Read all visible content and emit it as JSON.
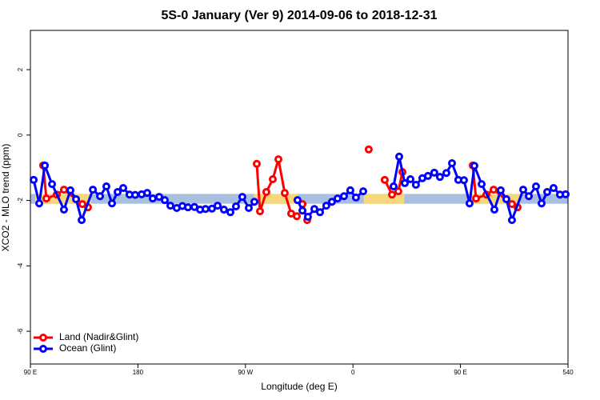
{
  "chart_data": {
    "type": "line",
    "title": "5S-0 January (Ver 9)   2014-09-06 to 2018-12-31",
    "x_label": "Longitude (deg E)",
    "y_label": "XCO2 - MLO trend (ppm)",
    "xlim": [
      90,
      540
    ],
    "xticks": [
      {
        "value": 90,
        "label": "90 E"
      },
      180,
      {
        "value": 270,
        "label": "90 W"
      },
      {
        "value": 360,
        "label": "0"
      },
      {
        "value": 450,
        "label": "90 E"
      },
      540
    ],
    "ylim": [
      -7,
      3.2
    ],
    "yticks": [
      -6,
      -4,
      -2,
      0,
      2
    ],
    "legend": "bottom-left",
    "band": {
      "range": [
        -2.1,
        -1.8
      ],
      "color": "#a8bfdf",
      "land_color": "#f6d77c",
      "land_spans": [
        [
          94,
          141
        ],
        [
          277,
          314
        ],
        [
          369,
          403
        ],
        [
          460,
          500
        ]
      ]
    },
    "series": [
      {
        "name": "Land (Nadir&Glint)",
        "color": "#ff0000",
        "x": [
          100.7,
          103.4,
          112.1,
          118.1,
          133.5,
          138.2,
          null,
          279.5,
          282.2,
          287.5,
          292.9,
          297.6,
          302.9,
          308.3,
          313.0,
          null,
          317.7,
          321.7,
          null,
          373.2,
          null,
          386.6,
          392.7,
          398.0,
          401.4,
          null,
          460.3,
          463.0,
          471.7,
          477.7,
          493.1,
          497.8
        ],
        "values": [
          -0.93,
          -1.94,
          -1.82,
          -1.67,
          -2.11,
          -2.21,
          null,
          -0.88,
          -2.33,
          -1.74,
          -1.35,
          -0.74,
          -1.77,
          -2.4,
          -2.48,
          null,
          -2.11,
          -2.6,
          null,
          -0.44,
          null,
          -1.37,
          -1.82,
          -1.72,
          -1.13,
          null,
          -0.93,
          -1.94,
          -1.82,
          -1.67,
          -2.11,
          -2.21
        ]
      },
      {
        "name": "Ocean (Glint)",
        "color": "#0000ff",
        "x": [
          92.7,
          97.4,
          102.1,
          108.1,
          118.1,
          123.5,
          128.2,
          132.9,
          142.3,
          148.3,
          153.6,
          158.3,
          163.0,
          167.7,
          173.0,
          177.7,
          183.1,
          187.8,
          192.4,
          197.8,
          202.5,
          207.2,
          212.5,
          217.2,
          221.9,
          227.3,
          232.0,
          236.6,
          242.0,
          246.7,
          252.0,
          257.4,
          262.1,
          267.4,
          272.8,
          277.5,
          null,
          313.6,
          317.7,
          322.3,
          327.7,
          332.4,
          337.7,
          342.4,
          347.1,
          352.5,
          357.8,
          362.5,
          368.6,
          null,
          394.0,
          398.7,
          403.4,
          408.1,
          412.7,
          418.1,
          422.8,
          428.1,
          432.8,
          438.2,
          442.9,
          448.2,
          452.9,
          457.6,
          461.6,
          467.7,
          478.4,
          483.7,
          488.4,
          493.1,
          502.5,
          507.2,
          513.2,
          517.9,
          522.6,
          527.9,
          533.3,
          538.0
        ],
        "values": [
          -1.37,
          -2.09,
          -0.93,
          -1.5,
          -2.28,
          -1.69,
          -1.96,
          -2.6,
          -1.67,
          -1.87,
          -1.57,
          -2.09,
          -1.74,
          -1.62,
          -1.82,
          -1.83,
          -1.81,
          -1.77,
          -1.94,
          -1.89,
          -1.99,
          -2.16,
          -2.23,
          -2.17,
          -2.21,
          -2.2,
          -2.28,
          -2.26,
          -2.25,
          -2.16,
          -2.28,
          -2.36,
          -2.18,
          -1.89,
          -2.23,
          -2.04,
          null,
          -1.99,
          -2.31,
          -2.5,
          -2.26,
          -2.36,
          -2.16,
          -2.04,
          -1.94,
          -1.87,
          -1.69,
          -1.91,
          -1.72,
          null,
          -1.57,
          -0.66,
          -1.47,
          -1.35,
          -1.52,
          -1.32,
          -1.25,
          -1.15,
          -1.28,
          -1.16,
          -0.86,
          -1.37,
          -1.38,
          -2.09,
          -0.94,
          -1.5,
          -2.28,
          -1.69,
          -1.96,
          -2.6,
          -1.67,
          -1.87,
          -1.57,
          -2.09,
          -1.74,
          -1.62,
          -1.82,
          -1.81
        ]
      }
    ]
  }
}
